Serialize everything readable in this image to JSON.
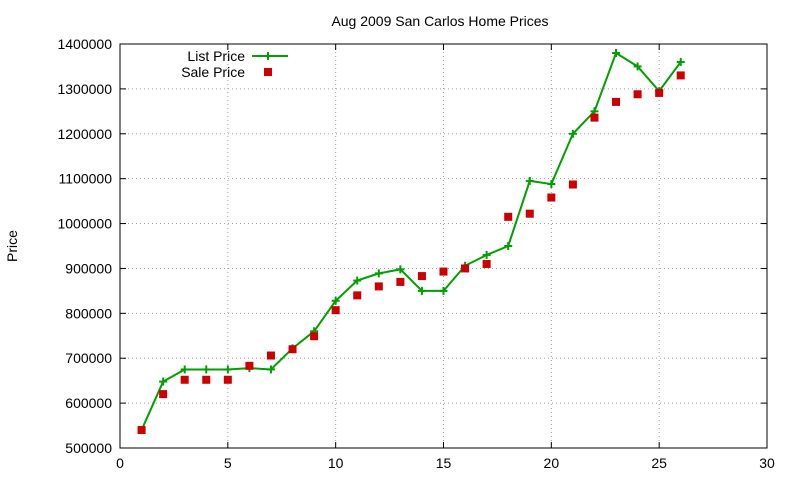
{
  "chart_data": {
    "type": "line",
    "title": "Aug 2009 San Carlos Home Prices",
    "xlabel": "",
    "ylabel": "Price",
    "xlim": [
      0,
      30
    ],
    "ylim": [
      500000,
      1400000
    ],
    "xticks": [
      0,
      5,
      10,
      15,
      20,
      25,
      30
    ],
    "yticks": [
      500000,
      600000,
      700000,
      800000,
      900000,
      1000000,
      1100000,
      1200000,
      1300000,
      1400000
    ],
    "grid": true,
    "legend": "top-left",
    "series": [
      {
        "name": "List Price",
        "type": "line",
        "marker": "plus",
        "color": "#00a000",
        "x": [
          1,
          2,
          3,
          4,
          5,
          6,
          7,
          8,
          9,
          10,
          11,
          12,
          13,
          14,
          15,
          16,
          17,
          18,
          19,
          20,
          21,
          22,
          23,
          24,
          25,
          26
        ],
        "y": [
          540000,
          648000,
          675000,
          675000,
          675000,
          678000,
          675000,
          722000,
          760000,
          828000,
          873000,
          889000,
          898000,
          850000,
          850000,
          906000,
          930000,
          950000,
          1095000,
          1088000,
          1200000,
          1250000,
          1380000,
          1350000,
          1295000,
          1360000
        ]
      },
      {
        "name": "Sale Price",
        "type": "scatter",
        "marker": "square",
        "color": "#cc0000",
        "x": [
          1,
          2,
          3,
          4,
          5,
          6,
          7,
          8,
          9,
          10,
          11,
          12,
          13,
          14,
          15,
          16,
          17,
          18,
          19,
          20,
          21,
          22,
          23,
          24,
          25,
          26
        ],
        "y": [
          540000,
          620000,
          652000,
          652000,
          652000,
          683000,
          706000,
          720000,
          749000,
          807000,
          840000,
          860000,
          870000,
          883000,
          893000,
          900000,
          910000,
          1015000,
          1022000,
          1058000,
          1087000,
          1236000,
          1271000,
          1288000,
          1291000,
          1330000
        ]
      }
    ]
  }
}
